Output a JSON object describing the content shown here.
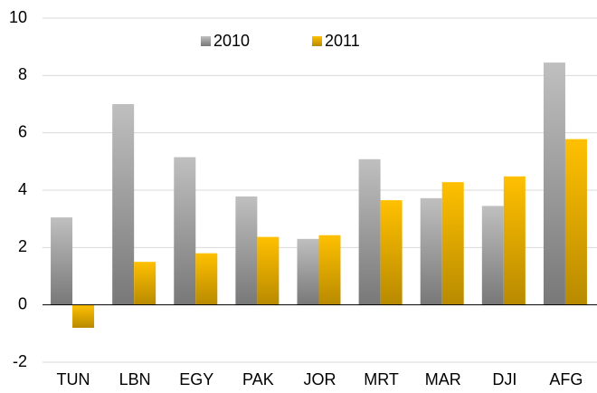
{
  "chart_data": {
    "type": "bar",
    "categories": [
      "TUN",
      "LBN",
      "EGY",
      "PAK",
      "JOR",
      "MRT",
      "MAR",
      "DJI",
      "AFG"
    ],
    "series": [
      {
        "name": "2010",
        "color": "#a6a6a6",
        "values": [
          3.05,
          7.0,
          5.15,
          3.78,
          2.3,
          5.08,
          3.72,
          3.45,
          8.45
        ]
      },
      {
        "name": "2011",
        "color": "#ffc000",
        "values": [
          -0.8,
          1.5,
          1.8,
          2.37,
          2.43,
          3.65,
          4.28,
          4.48,
          5.78
        ]
      }
    ],
    "ylim": [
      -2,
      10
    ],
    "yticks": [
      -2,
      0,
      2,
      4,
      6,
      8,
      10
    ],
    "grid": true,
    "legend": "top"
  }
}
